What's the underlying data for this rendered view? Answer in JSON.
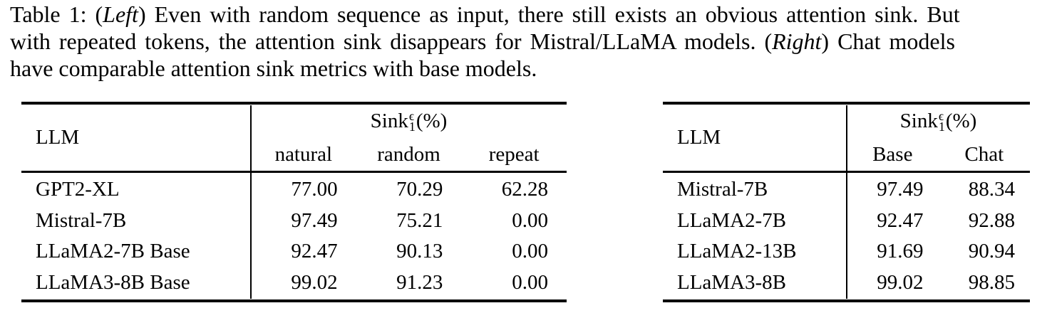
{
  "colors": {
    "background": "#ffffff",
    "text": "#000000",
    "rule": "#000000"
  },
  "caption": {
    "line1_pre": "Table 1: (",
    "line1_italic": "Left",
    "line1_post": ") Even with random sequence as input, there still exists an obvious attention sink. But",
    "line2_pre": "with repeated tokens, the attention sink disappears for Mistral/LLaMA models. (",
    "line2_italic": "Right",
    "line2_post": ") Chat models",
    "line3": "have comparable attention sink metrics with base models."
  },
  "left_table": {
    "llm_header": "LLM",
    "metric": {
      "name": "Sink",
      "sup": "ϵ",
      "sub": "1",
      "suffix": "(%)"
    },
    "columns": [
      "natural",
      "random",
      "repeat"
    ],
    "rows": [
      {
        "llm": "GPT2-XL",
        "values": [
          "77.00",
          "70.29",
          "62.28"
        ]
      },
      {
        "llm": "Mistral-7B",
        "values": [
          "97.49",
          "75.21",
          "0.00"
        ]
      },
      {
        "llm": "LLaMA2-7B Base",
        "values": [
          "92.47",
          "90.13",
          "0.00"
        ]
      },
      {
        "llm": "LLaMA3-8B Base",
        "values": [
          "99.02",
          "91.23",
          "0.00"
        ]
      }
    ]
  },
  "right_table": {
    "llm_header": "LLM",
    "metric": {
      "name": "Sink",
      "sup": "ϵ",
      "sub": "1",
      "suffix": "(%)"
    },
    "columns": [
      "Base",
      "Chat"
    ],
    "rows": [
      {
        "llm": "Mistral-7B",
        "values": [
          "97.49",
          "88.34"
        ]
      },
      {
        "llm": "LLaMA2-7B",
        "values": [
          "92.47",
          "92.88"
        ]
      },
      {
        "llm": "LLaMA2-13B",
        "values": [
          "91.69",
          "90.94"
        ]
      },
      {
        "llm": "LLaMA3-8B",
        "values": [
          "99.02",
          "98.85"
        ]
      }
    ]
  }
}
